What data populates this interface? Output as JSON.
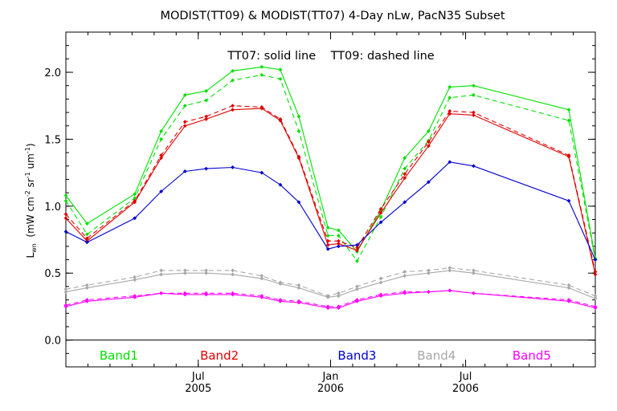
{
  "chart_data": {
    "type": "line",
    "title": "MODIST(TT09) & MODIST(TT07) 4-Day nLw, PacN35 Subset",
    "annotation": "TT07: solid line    TT09: dashed line",
    "ylabel_main": "L",
    "ylabel_sub": "wn",
    "ylabel_units": "(mW cm",
    "ylabel_units_sup1": "-2",
    "ylabel_units_mid": " sr",
    "ylabel_units_sup2": "-1",
    "ylabel_units_tail": " um",
    "ylabel_units_sup3": "-1",
    "ylabel_units_close": ")",
    "ylim": [
      -0.2,
      2.3
    ],
    "xlim": [
      0,
      100
    ],
    "yticks": [
      "0.0",
      "0.5",
      "1.0",
      "1.5",
      "2.0"
    ],
    "ytick_values": [
      0.0,
      0.5,
      1.0,
      1.5,
      2.0
    ],
    "xticks": [
      {
        "x": 25,
        "line1": "Jul",
        "line2": "2005"
      },
      {
        "x": 50,
        "line1": "Jan",
        "line2": "2006"
      },
      {
        "x": 75.5,
        "line1": "Jul",
        "line2": "2006"
      }
    ],
    "zero_line": 0.0,
    "legend": [
      {
        "label": "Band1",
        "color": "#00e000",
        "x": 10
      },
      {
        "label": "Band2",
        "color": "#e00000",
        "x": 29
      },
      {
        "label": "Band3",
        "color": "#0000d0",
        "x": 55
      },
      {
        "label": "Band4",
        "color": "#a8a8a8",
        "x": 70
      },
      {
        "label": "Band5",
        "color": "#ff00ff",
        "x": 88
      }
    ],
    "x": [
      0,
      4,
      13,
      18,
      22.5,
      26.5,
      31.5,
      37,
      40.5,
      44,
      49.5,
      51.5,
      55,
      59.5,
      64,
      68.5,
      72.5,
      77,
      95,
      100
    ],
    "series": [
      {
        "name": "Band1",
        "style": "solid",
        "color": "#00e000",
        "values": [
          1.08,
          0.87,
          1.09,
          1.56,
          1.83,
          1.86,
          2.01,
          2.04,
          2.02,
          1.67,
          0.84,
          0.82,
          0.66,
          0.97,
          1.36,
          1.56,
          1.89,
          1.9,
          1.72,
          0.61
        ]
      },
      {
        "name": "Band1",
        "style": "dashed",
        "color": "#00e000",
        "values": [
          1.04,
          0.79,
          1.06,
          1.5,
          1.75,
          1.79,
          1.94,
          1.98,
          1.95,
          1.56,
          0.78,
          0.78,
          0.59,
          0.92,
          1.28,
          1.49,
          1.81,
          1.83,
          1.64,
          0.6
        ]
      },
      {
        "name": "Band2",
        "style": "solid",
        "color": "#e00000",
        "values": [
          0.91,
          0.74,
          1.03,
          1.36,
          1.6,
          1.65,
          1.72,
          1.73,
          1.64,
          1.36,
          0.71,
          0.72,
          0.67,
          0.95,
          1.21,
          1.45,
          1.69,
          1.68,
          1.37,
          0.49
        ]
      },
      {
        "name": "Band2",
        "style": "dashed",
        "color": "#e00000",
        "values": [
          0.94,
          0.76,
          1.04,
          1.38,
          1.63,
          1.67,
          1.75,
          1.74,
          1.65,
          1.37,
          0.74,
          0.74,
          0.69,
          0.98,
          1.24,
          1.48,
          1.71,
          1.7,
          1.38,
          0.51
        ]
      },
      {
        "name": "Band3",
        "style": "solid",
        "color": "#0000d0",
        "values": [
          0.81,
          0.73,
          0.91,
          1.11,
          1.26,
          1.28,
          1.29,
          1.25,
          1.16,
          1.03,
          0.68,
          0.7,
          0.71,
          0.88,
          1.03,
          1.18,
          1.33,
          1.3,
          1.04,
          0.6
        ]
      },
      {
        "name": "Band4",
        "style": "solid",
        "color": "#a8a8a8",
        "values": [
          0.36,
          0.39,
          0.45,
          0.49,
          0.5,
          0.5,
          0.49,
          0.46,
          0.42,
          0.39,
          0.32,
          0.33,
          0.38,
          0.43,
          0.48,
          0.5,
          0.52,
          0.5,
          0.39,
          0.31
        ]
      },
      {
        "name": "Band4",
        "style": "dashed",
        "color": "#a8a8a8",
        "values": [
          0.38,
          0.41,
          0.47,
          0.52,
          0.52,
          0.52,
          0.52,
          0.48,
          0.43,
          0.41,
          0.33,
          0.35,
          0.4,
          0.46,
          0.51,
          0.52,
          0.54,
          0.52,
          0.41,
          0.33
        ]
      },
      {
        "name": "Band5",
        "style": "solid",
        "color": "#ff00ff",
        "values": [
          0.25,
          0.29,
          0.32,
          0.35,
          0.34,
          0.34,
          0.34,
          0.32,
          0.29,
          0.28,
          0.24,
          0.24,
          0.29,
          0.33,
          0.35,
          0.36,
          0.37,
          0.35,
          0.29,
          0.24
        ]
      },
      {
        "name": "Band5",
        "style": "dashed",
        "color": "#ff00ff",
        "values": [
          0.26,
          0.3,
          0.33,
          0.35,
          0.35,
          0.35,
          0.35,
          0.33,
          0.3,
          0.29,
          0.25,
          0.25,
          0.3,
          0.34,
          0.36,
          0.36,
          0.37,
          0.35,
          0.3,
          0.25
        ]
      }
    ]
  }
}
